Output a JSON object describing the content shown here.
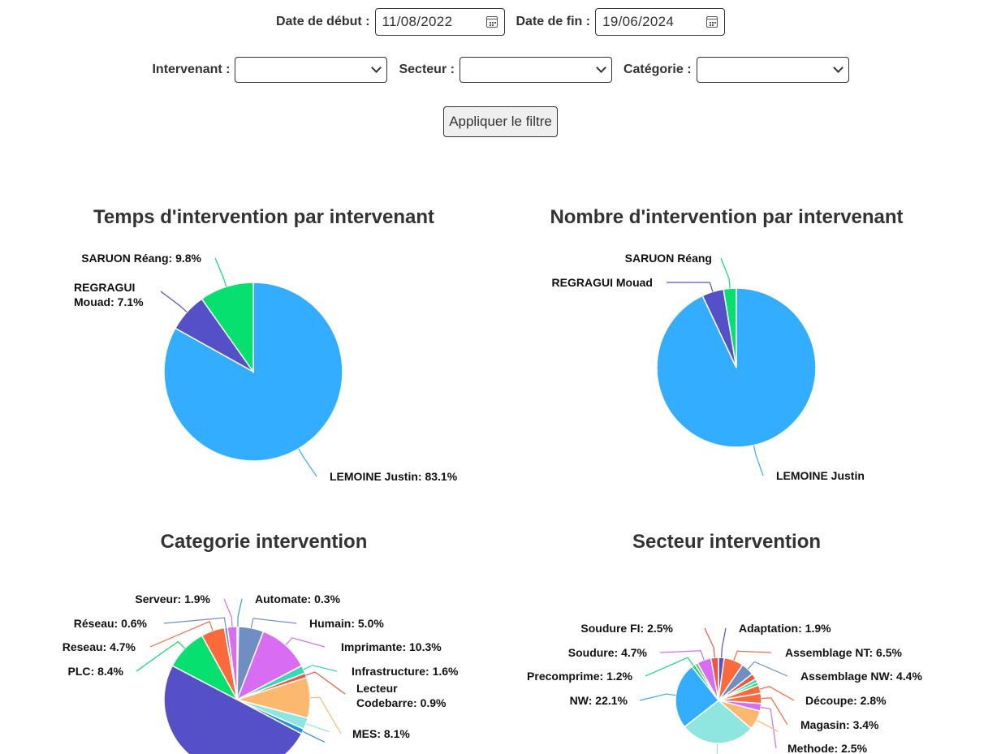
{
  "filters": {
    "start_label": "Date de début :",
    "start_value": "11/08/2022",
    "end_label": "Date de fin :",
    "end_value": "19/06/2024",
    "intervenant_label": "Intervenant :",
    "secteur_label": "Secteur :",
    "categorie_label": "Catégorie :",
    "apply_button": "Appliquer le filtre"
  },
  "chart_data": [
    {
      "type": "pie",
      "title": "Temps d'intervention par intervenant",
      "slices": [
        {
          "label": "LEMOINE Justin: 83.1%",
          "value": 83.1,
          "color": "#33adff"
        },
        {
          "label": "REGRAGUI Mouad: 7.1%",
          "value": 7.1,
          "color": "#5650c8"
        },
        {
          "label": "SARUON Réang: 9.8%",
          "value": 9.8,
          "color": "#05e06e"
        }
      ]
    },
    {
      "type": "pie",
      "title": "Nombre d'intervention par intervenant",
      "slices": [
        {
          "label": "LEMOINE Justin",
          "value": 93.0,
          "color": "#33adff"
        },
        {
          "label": "REGRAGUI Mouad",
          "value": 4.4,
          "color": "#5650c8"
        },
        {
          "label": "SARUON Réang",
          "value": 2.6,
          "color": "#05e06e"
        }
      ]
    },
    {
      "type": "pie",
      "title": "Categorie intervention",
      "slices": [
        {
          "label": "Automate: 0.3%",
          "value": 0.3,
          "color": "#2aa0d8"
        },
        {
          "label": "Humain: 5.0%",
          "value": 5.0,
          "color": "#6f8fc4"
        },
        {
          "label": "Imprimante: 10.3%",
          "value": 10.3,
          "color": "#d86cf2"
        },
        {
          "label": "Infrastructure: 1.6%",
          "value": 1.6,
          "color": "#35d9b8"
        },
        {
          "label": "Lecteur Codebarre: 0.9%",
          "value": 0.9,
          "color": "#f0563a"
        },
        {
          "label": "MES: 8.1%",
          "value": 8.1,
          "color": "#fcb86e"
        },
        {
          "label": "",
          "value": 2.3,
          "color": "#8fe6e0"
        },
        {
          "label": "",
          "value": 1.0,
          "color": "#1f8fe0"
        },
        {
          "label": "",
          "value": 45.0,
          "color": "#5650c8"
        },
        {
          "label": "PLC: 8.4%",
          "value": 8.4,
          "color": "#05e06e"
        },
        {
          "label": "Reseau: 4.7%",
          "value": 4.7,
          "color": "#fb6a3a"
        },
        {
          "label": "Réseau: 0.6%",
          "value": 0.6,
          "color": "#6f8fc4"
        },
        {
          "label": "Serveur: 1.9%",
          "value": 1.9,
          "color": "#d86cf2"
        }
      ]
    },
    {
      "type": "pie",
      "title": "Secteur intervention",
      "slices": [
        {
          "label": "Adaptation: 1.9%",
          "value": 1.9,
          "color": "#5650c8"
        },
        {
          "label": "Assemblage NT: 6.5%",
          "value": 6.5,
          "color": "#fb6a3a"
        },
        {
          "label": "Assemblage NW: 4.4%",
          "value": 4.4,
          "color": "#6f8fc4"
        },
        {
          "label": "",
          "value": 2.0,
          "color": "#f0563a"
        },
        {
          "label": "",
          "value": 1.2,
          "color": "#35d9b8"
        },
        {
          "label": "",
          "value": 1.0,
          "color": "#05e06e"
        },
        {
          "label": "Découpe: 2.8%",
          "value": 2.8,
          "color": "#fb6a3a"
        },
        {
          "label": "Magasin: 3.4%",
          "value": 3.4,
          "color": "#fb6a3a"
        },
        {
          "label": "Methode: 2.5%",
          "value": 2.5,
          "color": "#d86cf2"
        },
        {
          "label": "",
          "value": 6.5,
          "color": "#fcb86e"
        },
        {
          "label": "",
          "value": 25.0,
          "color": "#8fe6e0"
        },
        {
          "label": "NW: 22.1%",
          "value": 22.1,
          "color": "#33adff"
        },
        {
          "label": "Precomprime: 1.2%",
          "value": 1.2,
          "color": "#05e06e"
        },
        {
          "label": "",
          "value": 1.0,
          "color": "#88b04b"
        },
        {
          "label": "Soudure: 4.7%",
          "value": 4.7,
          "color": "#d86cf2"
        },
        {
          "label": "Soudure FI: 2.5%",
          "value": 2.5,
          "color": "#f0563a"
        }
      ]
    }
  ]
}
